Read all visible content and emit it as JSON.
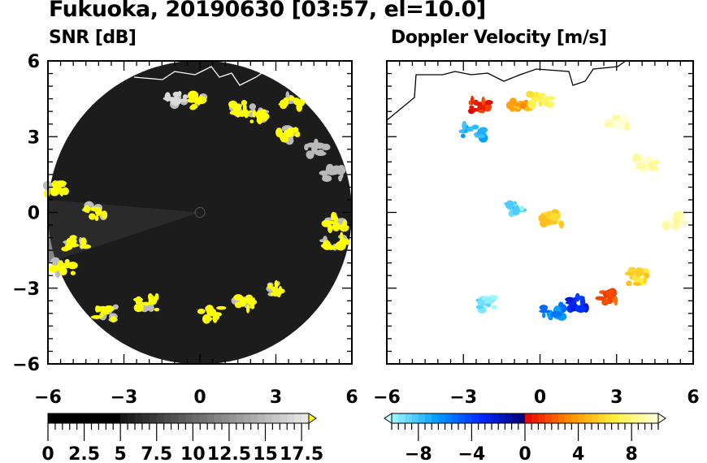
{
  "title": "Fukuoka, 20190630 [03:57, el=10.0]",
  "chart_data": [
    {
      "type": "heatmap",
      "title": "SNR [dB]",
      "xlim": [
        -6,
        6
      ],
      "ylim": [
        -6,
        6
      ],
      "xticks": [
        "−6",
        "−3",
        "0",
        "3",
        "6"
      ],
      "yticks": [
        "6",
        "3",
        "0",
        "−3",
        "−6"
      ],
      "xtick_values": [
        -6,
        -3,
        0,
        3,
        6
      ],
      "ytick_values": [
        6,
        3,
        0,
        -3,
        -6
      ],
      "range_radius": 6,
      "colorbar": {
        "min": 0,
        "max": 18,
        "step": 0.5,
        "extend": "max",
        "tick_labels": [
          "0",
          "2.5",
          "5",
          "7.5",
          "10",
          "12.5",
          "15",
          "17.5"
        ],
        "tick_values": [
          0,
          2.5,
          5,
          7.5,
          10,
          12.5,
          15,
          17.5
        ],
        "over_color": "#ffff00"
      },
      "echoes": [
        {
          "x": 0.0,
          "y": 4.4,
          "v": 19
        },
        {
          "x": 1.7,
          "y": 4.1,
          "v": 19
        },
        {
          "x": 2.4,
          "y": 3.8,
          "v": 19
        },
        {
          "x": 3.5,
          "y": 3.1,
          "v": 18
        },
        {
          "x": 3.6,
          "y": 4.4,
          "v": 18
        },
        {
          "x": -0.9,
          "y": 4.5,
          "v": 17
        },
        {
          "x": -4.1,
          "y": 0.0,
          "v": 19
        },
        {
          "x": -4.9,
          "y": -1.2,
          "v": 19
        },
        {
          "x": -5.4,
          "y": -2.2,
          "v": 19
        },
        {
          "x": -3.7,
          "y": -4.0,
          "v": 19
        },
        {
          "x": -2.1,
          "y": -3.6,
          "v": 19
        },
        {
          "x": 0.45,
          "y": -4.0,
          "v": 19
        },
        {
          "x": 1.7,
          "y": -3.6,
          "v": 19
        },
        {
          "x": 3.0,
          "y": -3.0,
          "v": 19
        },
        {
          "x": 5.4,
          "y": -0.4,
          "v": 19
        },
        {
          "x": 5.3,
          "y": -1.2,
          "v": 19
        },
        {
          "x": 5.2,
          "y": 1.5,
          "v": 15
        },
        {
          "x": 4.6,
          "y": 2.5,
          "v": 15
        },
        {
          "x": -5.7,
          "y": 0.9,
          "v": 18
        }
      ]
    },
    {
      "type": "heatmap",
      "title": "Doppler Velocity [m/s]",
      "xlim": [
        -6,
        6
      ],
      "ylim": [
        -6,
        6
      ],
      "xticks": [
        "−6",
        "−3",
        "0",
        "3",
        "6"
      ],
      "xtick_values": [
        -6,
        -3,
        0,
        3,
        6
      ],
      "colorbar": {
        "min": -10,
        "max": 10,
        "step": 0.5,
        "extend": "both",
        "tick_labels": [
          "−8",
          "−4",
          "0",
          "4",
          "8"
        ],
        "tick_values": [
          -8,
          -4,
          0,
          4,
          8
        ]
      },
      "echoes": [
        {
          "x": -2.4,
          "y": 4.2,
          "v": 1
        },
        {
          "x": -2.6,
          "y": 3.2,
          "v": -7
        },
        {
          "x": -0.8,
          "y": 4.2,
          "v": 4
        },
        {
          "x": 0.0,
          "y": 4.5,
          "v": 7
        },
        {
          "x": -1.1,
          "y": 0.1,
          "v": -9
        },
        {
          "x": 0.5,
          "y": -0.25,
          "v": 6
        },
        {
          "x": 0.5,
          "y": -3.9,
          "v": -6
        },
        {
          "x": 1.5,
          "y": -3.6,
          "v": -3
        },
        {
          "x": 2.7,
          "y": -3.4,
          "v": 2
        },
        {
          "x": 3.8,
          "y": -2.6,
          "v": 6
        },
        {
          "x": -2.1,
          "y": -3.6,
          "v": -9
        },
        {
          "x": 3.0,
          "y": 3.6,
          "v": 9.5
        },
        {
          "x": 4.2,
          "y": 1.9,
          "v": 9.5
        },
        {
          "x": 5.3,
          "y": -0.3,
          "v": 9.5
        }
      ]
    }
  ]
}
